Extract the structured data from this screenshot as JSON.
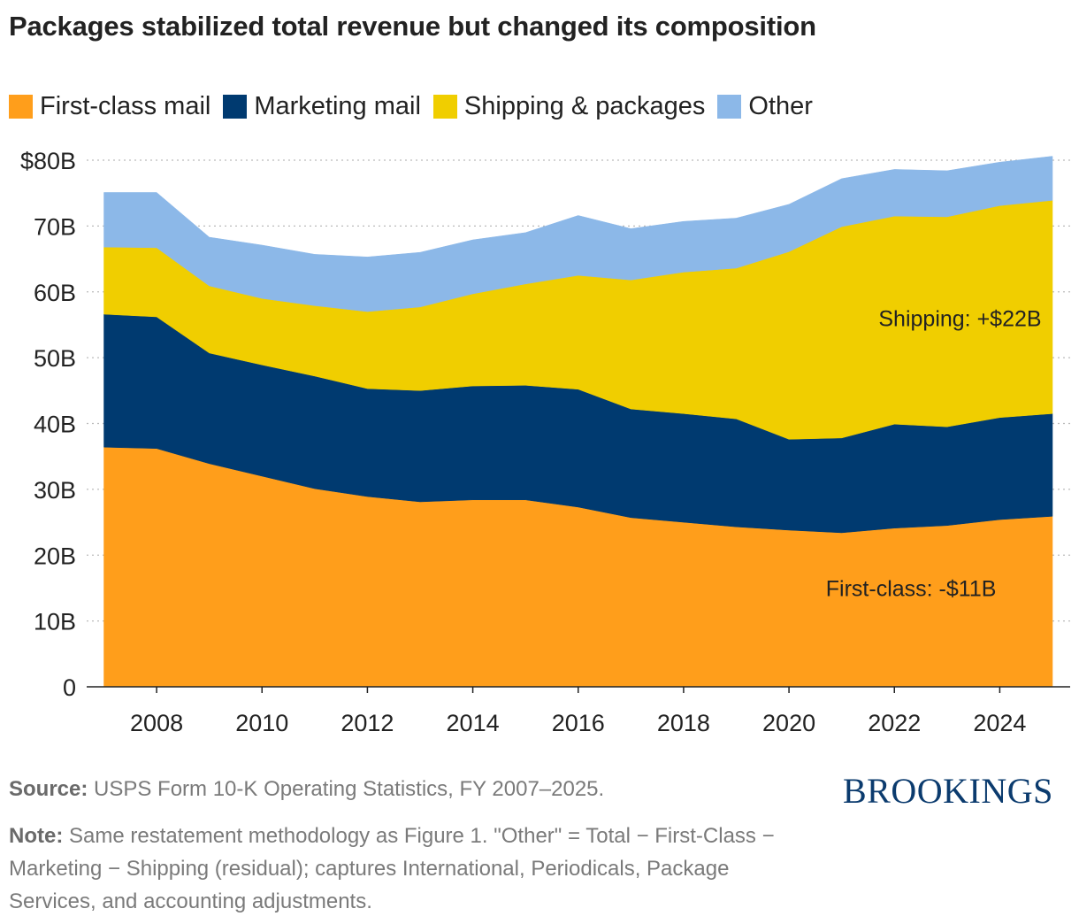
{
  "title": "Packages stabilized total revenue but changed its composition",
  "chart_data": {
    "type": "area",
    "stacked": true,
    "x": [
      2007,
      2008,
      2009,
      2010,
      2011,
      2012,
      2013,
      2014,
      2015,
      2016,
      2017,
      2018,
      2019,
      2020,
      2021,
      2022,
      2023,
      2024,
      2025
    ],
    "series": [
      {
        "name": "First-class mail",
        "color": "#FF9E1B",
        "values": [
          36.4,
          36.2,
          33.9,
          32.0,
          30.1,
          28.9,
          28.1,
          28.4,
          28.4,
          27.3,
          25.7,
          25.0,
          24.3,
          23.8,
          23.4,
          24.1,
          24.5,
          25.4,
          25.9
        ]
      },
      {
        "name": "Marketing mail",
        "color": "#003A70",
        "values": [
          20.2,
          20.0,
          16.8,
          16.9,
          17.1,
          16.4,
          16.9,
          17.3,
          17.4,
          17.9,
          16.5,
          16.5,
          16.4,
          13.8,
          14.4,
          15.8,
          15.0,
          15.5,
          15.6
        ]
      },
      {
        "name": "Shipping & packages",
        "color": "#F0CE00",
        "values": [
          10.2,
          10.5,
          10.2,
          10.1,
          10.7,
          11.7,
          12.7,
          14.0,
          15.4,
          17.3,
          19.6,
          21.5,
          22.9,
          28.5,
          32.1,
          31.6,
          31.9,
          32.2,
          32.4
        ]
      },
      {
        "name": "Other",
        "color": "#8CB8E8",
        "values": [
          8.3,
          8.4,
          7.4,
          8.1,
          7.8,
          8.3,
          8.3,
          8.2,
          7.8,
          9.1,
          7.8,
          7.7,
          7.6,
          7.2,
          7.3,
          7.1,
          7.0,
          6.6,
          6.7
        ]
      }
    ],
    "ylim": [
      0,
      80
    ],
    "yticks": [
      0,
      10,
      20,
      30,
      40,
      50,
      60,
      70,
      80
    ],
    "ytick_labels": [
      "0",
      "10B",
      "20B",
      "30B",
      "40B",
      "50B",
      "60B",
      "70B",
      "$80B"
    ],
    "xticks": [
      2008,
      2010,
      2012,
      2014,
      2016,
      2018,
      2020,
      2022,
      2024
    ],
    "xtick_labels": [
      "2008",
      "2010",
      "2012",
      "2014",
      "2016",
      "2018",
      "2020",
      "2022",
      "2024"
    ],
    "grid": "horizontal dotted",
    "legend_position": "top-left",
    "annotations": [
      {
        "text": "Shipping: +$22B",
        "x": 2021.7,
        "y": 56
      },
      {
        "text": "First-class: -$11B",
        "x": 2020.7,
        "y": 15
      }
    ]
  },
  "source_label": "Source:",
  "source_text": " USPS Form 10-K Operating Statistics, FY 2007–2025.",
  "note_label": "Note:",
  "note_text": " Same restatement methodology as Figure 1. \"Other\" = Total − First-Class − Marketing − Shipping (residual); captures International, Periodicals, Package Services, and accounting adjustments.",
  "logo": "BROOKINGS"
}
